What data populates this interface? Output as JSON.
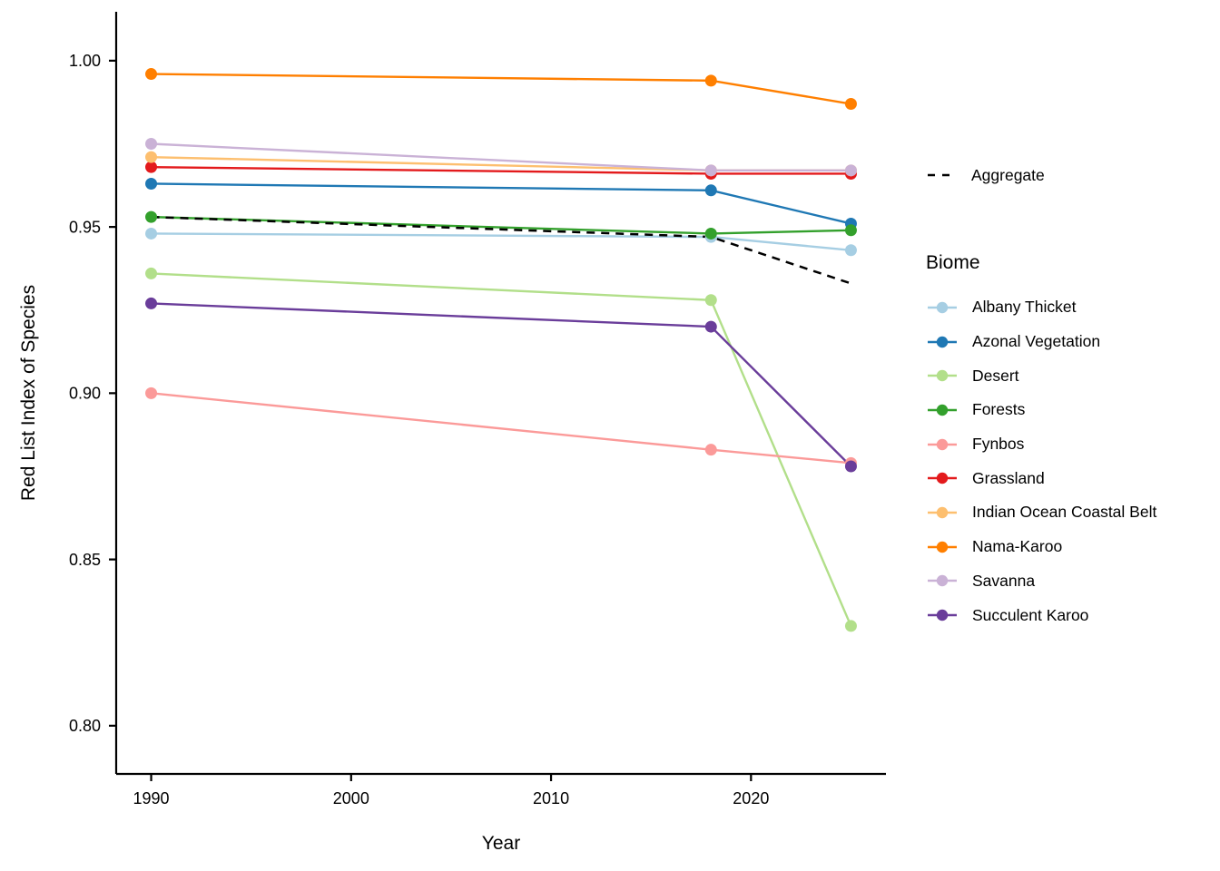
{
  "figure": {
    "background": "#ffffff",
    "text_color": "#000000",
    "axis_color": "#000000"
  },
  "chart_data": {
    "type": "line",
    "title": "",
    "xlabel": "Year",
    "ylabel": "Red List Index of Species",
    "grid": false,
    "legend_position": "right",
    "legend_title": "Biome",
    "x": [
      1990,
      2018,
      2025
    ],
    "x_ticks": [
      1990,
      2000,
      2010,
      2020
    ],
    "y_ticks": [
      "1.00",
      "0.95",
      "0.90",
      "0.85",
      "0.80"
    ],
    "xlim": [
      1988.25,
      2026.75
    ],
    "ylim": [
      0.7855,
      1.0147
    ],
    "aggregate": {
      "name": "Aggregate",
      "color": "#000000",
      "style": "dashed",
      "values": [
        0.953,
        0.947,
        0.933
      ]
    },
    "series": [
      {
        "name": "Albany Thicket",
        "color": "#a6cee3",
        "values": [
          0.948,
          0.947,
          0.943
        ]
      },
      {
        "name": "Azonal Vegetation",
        "color": "#1f78b4",
        "values": [
          0.963,
          0.961,
          0.951
        ]
      },
      {
        "name": "Desert",
        "color": "#b2df8a",
        "values": [
          0.936,
          0.928,
          0.83
        ]
      },
      {
        "name": "Forests",
        "color": "#33a02c",
        "values": [
          0.953,
          0.948,
          0.949
        ]
      },
      {
        "name": "Fynbos",
        "color": "#fb9a99",
        "values": [
          0.9,
          0.883,
          0.879
        ]
      },
      {
        "name": "Grassland",
        "color": "#e31a1c",
        "values": [
          0.968,
          0.966,
          0.966
        ]
      },
      {
        "name": "Indian Ocean Coastal Belt",
        "color": "#fdbf6f",
        "values": [
          0.971,
          0.967,
          0.967
        ]
      },
      {
        "name": "Nama-Karoo",
        "color": "#ff7f00",
        "values": [
          0.996,
          0.994,
          0.987
        ]
      },
      {
        "name": "Savanna",
        "color": "#cab2d6",
        "values": [
          0.975,
          0.967,
          0.967
        ]
      },
      {
        "name": "Succulent Karoo",
        "color": "#6a3d9a",
        "values": [
          0.927,
          0.92,
          0.878
        ]
      }
    ]
  }
}
